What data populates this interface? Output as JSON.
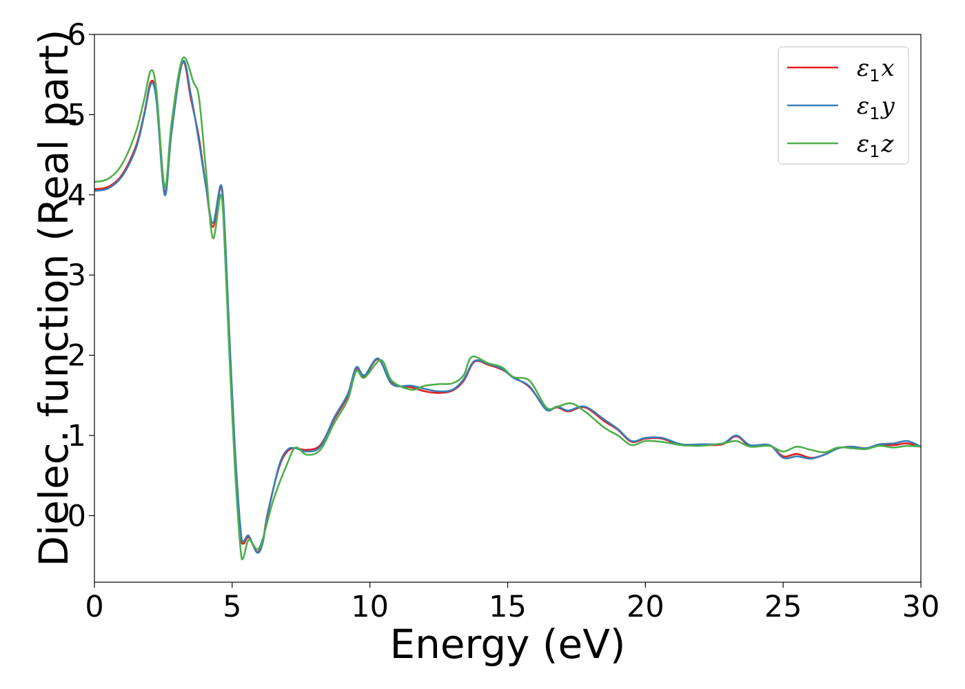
{
  "chart_data": {
    "type": "line",
    "xlabel": "Energy (eV)",
    "ylabel": "Dielec. function (Real part)",
    "xlim": [
      0,
      30
    ],
    "ylim": [
      -0.83,
      6.0
    ],
    "x_ticks": [
      0,
      5,
      10,
      15,
      20,
      25,
      30
    ],
    "y_ticks": [
      0,
      1,
      2,
      3,
      4,
      5,
      6
    ],
    "grid": false,
    "legend_position": "top-right",
    "series": [
      {
        "name": "ε1x",
        "legend_base": "ε",
        "legend_sub": "1",
        "legend_axis": "x",
        "color": "#e41a1c",
        "points": [
          [
            0,
            4.07
          ],
          [
            0.5,
            4.1
          ],
          [
            1.0,
            4.25
          ],
          [
            1.5,
            4.6
          ],
          [
            1.8,
            5.0
          ],
          [
            2.05,
            5.41
          ],
          [
            2.25,
            5.2
          ],
          [
            2.55,
            4.03
          ],
          [
            2.8,
            4.8
          ],
          [
            3.2,
            5.65
          ],
          [
            3.5,
            5.2
          ],
          [
            3.8,
            4.7
          ],
          [
            4.05,
            4.1
          ],
          [
            4.3,
            3.6
          ],
          [
            4.6,
            4.1
          ],
          [
            4.75,
            3.4
          ],
          [
            4.9,
            2.2
          ],
          [
            5.1,
            0.8
          ],
          [
            5.3,
            -0.2
          ],
          [
            5.4,
            -0.35
          ],
          [
            5.6,
            -0.27
          ],
          [
            5.9,
            -0.45
          ],
          [
            6.1,
            -0.33
          ],
          [
            6.3,
            0.05
          ],
          [
            6.7,
            0.6
          ],
          [
            7.0,
            0.8
          ],
          [
            7.3,
            0.84
          ],
          [
            7.7,
            0.82
          ],
          [
            8.2,
            0.88
          ],
          [
            8.7,
            1.2
          ],
          [
            9.2,
            1.5
          ],
          [
            9.5,
            1.83
          ],
          [
            9.8,
            1.74
          ],
          [
            10.3,
            1.95
          ],
          [
            10.8,
            1.65
          ],
          [
            11.5,
            1.6
          ],
          [
            12.0,
            1.55
          ],
          [
            12.5,
            1.53
          ],
          [
            13.0,
            1.56
          ],
          [
            13.4,
            1.68
          ],
          [
            13.8,
            1.92
          ],
          [
            14.3,
            1.88
          ],
          [
            14.8,
            1.82
          ],
          [
            15.2,
            1.73
          ],
          [
            15.8,
            1.6
          ],
          [
            16.4,
            1.33
          ],
          [
            16.8,
            1.35
          ],
          [
            17.2,
            1.3
          ],
          [
            17.8,
            1.35
          ],
          [
            18.5,
            1.18
          ],
          [
            19.0,
            1.07
          ],
          [
            19.5,
            0.92
          ],
          [
            20.0,
            0.96
          ],
          [
            20.6,
            0.96
          ],
          [
            21.3,
            0.88
          ],
          [
            22.0,
            0.88
          ],
          [
            22.8,
            0.89
          ],
          [
            23.3,
            0.99
          ],
          [
            23.8,
            0.87
          ],
          [
            24.5,
            0.88
          ],
          [
            25.0,
            0.74
          ],
          [
            25.5,
            0.77
          ],
          [
            26.0,
            0.72
          ],
          [
            26.5,
            0.76
          ],
          [
            27.0,
            0.84
          ],
          [
            27.5,
            0.86
          ],
          [
            28.0,
            0.84
          ],
          [
            28.5,
            0.88
          ],
          [
            29.0,
            0.88
          ],
          [
            29.5,
            0.9
          ],
          [
            30.0,
            0.86
          ]
        ]
      },
      {
        "name": "ε1y",
        "legend_base": "ε",
        "legend_sub": "1",
        "legend_axis": "y",
        "color": "#377eb8",
        "points": [
          [
            0,
            4.05
          ],
          [
            0.5,
            4.08
          ],
          [
            1.0,
            4.23
          ],
          [
            1.5,
            4.57
          ],
          [
            1.8,
            4.98
          ],
          [
            2.05,
            5.38
          ],
          [
            2.25,
            5.18
          ],
          [
            2.55,
            4.0
          ],
          [
            2.8,
            4.78
          ],
          [
            3.2,
            5.66
          ],
          [
            3.5,
            5.25
          ],
          [
            3.8,
            4.65
          ],
          [
            4.05,
            4.1
          ],
          [
            4.3,
            3.65
          ],
          [
            4.6,
            4.12
          ],
          [
            4.75,
            3.45
          ],
          [
            4.9,
            2.25
          ],
          [
            5.1,
            0.85
          ],
          [
            5.3,
            -0.15
          ],
          [
            5.4,
            -0.32
          ],
          [
            5.6,
            -0.25
          ],
          [
            5.9,
            -0.46
          ],
          [
            6.1,
            -0.35
          ],
          [
            6.3,
            0.03
          ],
          [
            6.7,
            0.62
          ],
          [
            7.0,
            0.82
          ],
          [
            7.3,
            0.84
          ],
          [
            7.7,
            0.8
          ],
          [
            8.2,
            0.86
          ],
          [
            8.7,
            1.22
          ],
          [
            9.2,
            1.52
          ],
          [
            9.5,
            1.85
          ],
          [
            9.8,
            1.75
          ],
          [
            10.3,
            1.96
          ],
          [
            10.8,
            1.64
          ],
          [
            11.5,
            1.62
          ],
          [
            12.0,
            1.58
          ],
          [
            12.5,
            1.55
          ],
          [
            13.0,
            1.57
          ],
          [
            13.4,
            1.7
          ],
          [
            13.8,
            1.93
          ],
          [
            14.3,
            1.89
          ],
          [
            14.8,
            1.83
          ],
          [
            15.2,
            1.72
          ],
          [
            15.8,
            1.61
          ],
          [
            16.4,
            1.32
          ],
          [
            16.8,
            1.36
          ],
          [
            17.2,
            1.31
          ],
          [
            17.8,
            1.36
          ],
          [
            18.5,
            1.2
          ],
          [
            19.0,
            1.08
          ],
          [
            19.5,
            0.93
          ],
          [
            20.0,
            0.97
          ],
          [
            20.6,
            0.97
          ],
          [
            21.3,
            0.89
          ],
          [
            22.0,
            0.89
          ],
          [
            22.8,
            0.9
          ],
          [
            23.3,
            1.0
          ],
          [
            23.8,
            0.88
          ],
          [
            24.5,
            0.88
          ],
          [
            25.0,
            0.72
          ],
          [
            25.5,
            0.74
          ],
          [
            26.0,
            0.71
          ],
          [
            26.5,
            0.76
          ],
          [
            27.0,
            0.84
          ],
          [
            27.5,
            0.86
          ],
          [
            28.0,
            0.84
          ],
          [
            28.5,
            0.89
          ],
          [
            29.0,
            0.9
          ],
          [
            29.5,
            0.93
          ],
          [
            30.0,
            0.86
          ]
        ]
      },
      {
        "name": "ε1z",
        "legend_base": "ε",
        "legend_sub": "1",
        "legend_axis": "z",
        "color": "#4daf4a",
        "points": [
          [
            0,
            4.16
          ],
          [
            0.5,
            4.2
          ],
          [
            1.0,
            4.38
          ],
          [
            1.5,
            4.78
          ],
          [
            1.8,
            5.18
          ],
          [
            2.05,
            5.55
          ],
          [
            2.25,
            5.3
          ],
          [
            2.55,
            4.1
          ],
          [
            2.8,
            4.9
          ],
          [
            3.2,
            5.7
          ],
          [
            3.6,
            5.4
          ],
          [
            3.8,
            5.2
          ],
          [
            4.05,
            4.3
          ],
          [
            4.3,
            3.46
          ],
          [
            4.6,
            4.0
          ],
          [
            4.75,
            3.2
          ],
          [
            4.9,
            2.0
          ],
          [
            5.1,
            0.6
          ],
          [
            5.3,
            -0.4
          ],
          [
            5.4,
            -0.53
          ],
          [
            5.6,
            -0.3
          ],
          [
            5.9,
            -0.42
          ],
          [
            6.1,
            -0.3
          ],
          [
            6.5,
            0.2
          ],
          [
            7.0,
            0.65
          ],
          [
            7.3,
            0.85
          ],
          [
            7.7,
            0.76
          ],
          [
            8.2,
            0.82
          ],
          [
            8.7,
            1.15
          ],
          [
            9.2,
            1.45
          ],
          [
            9.5,
            1.8
          ],
          [
            9.8,
            1.72
          ],
          [
            10.4,
            1.94
          ],
          [
            10.8,
            1.68
          ],
          [
            11.5,
            1.57
          ],
          [
            12.0,
            1.62
          ],
          [
            12.5,
            1.64
          ],
          [
            13.0,
            1.65
          ],
          [
            13.4,
            1.75
          ],
          [
            13.7,
            1.98
          ],
          [
            14.3,
            1.9
          ],
          [
            14.8,
            1.85
          ],
          [
            15.2,
            1.73
          ],
          [
            15.8,
            1.68
          ],
          [
            16.4,
            1.35
          ],
          [
            16.8,
            1.36
          ],
          [
            17.3,
            1.4
          ],
          [
            17.8,
            1.3
          ],
          [
            18.5,
            1.1
          ],
          [
            19.0,
            1.0
          ],
          [
            19.5,
            0.88
          ],
          [
            20.0,
            0.93
          ],
          [
            20.6,
            0.92
          ],
          [
            21.3,
            0.88
          ],
          [
            22.0,
            0.87
          ],
          [
            22.8,
            0.9
          ],
          [
            23.3,
            0.93
          ],
          [
            23.8,
            0.86
          ],
          [
            24.5,
            0.87
          ],
          [
            25.0,
            0.8
          ],
          [
            25.5,
            0.86
          ],
          [
            26.0,
            0.82
          ],
          [
            26.5,
            0.79
          ],
          [
            27.0,
            0.85
          ],
          [
            27.5,
            0.84
          ],
          [
            28.0,
            0.83
          ],
          [
            28.5,
            0.87
          ],
          [
            29.0,
            0.85
          ],
          [
            29.5,
            0.87
          ],
          [
            30.0,
            0.86
          ]
        ]
      }
    ]
  }
}
